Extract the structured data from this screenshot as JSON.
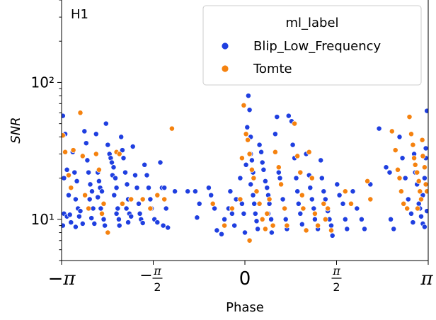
{
  "chart_data": {
    "type": "scatter",
    "panel_label": "H1",
    "xlabel": "Phase",
    "ylabel": "SNR",
    "xlim": [
      -3.14159,
      3.14159
    ],
    "ylim": [
      5,
      400
    ],
    "yscale": "log",
    "grid": false,
    "x_ticks": [
      {
        "value": -3.14159,
        "label": "−π"
      },
      {
        "value": -1.5708,
        "label": "−π/2"
      },
      {
        "value": 0,
        "label": "0"
      },
      {
        "value": 1.5708,
        "label": "π/2"
      },
      {
        "value": 3.14159,
        "label": "π"
      }
    ],
    "y_ticks": [
      {
        "value": 10,
        "label": "10¹"
      },
      {
        "value": 100,
        "label": "10²"
      }
    ],
    "legend": {
      "title": "ml_label",
      "placement": "top-right",
      "entries": [
        "Blip_Low_Frequency",
        "Tomte"
      ]
    },
    "colors": {
      "Blip_Low_Frequency": "#1f3fe0",
      "Tomte": "#f5820f"
    },
    "series": [
      {
        "name": "Blip_Low_Frequency",
        "points": [
          [
            -3.12,
            57
          ],
          [
            -3.08,
            42
          ],
          [
            -3.05,
            23
          ],
          [
            -3.1,
            20
          ],
          [
            -3.02,
            15
          ],
          [
            -3.1,
            11
          ],
          [
            -3.05,
            10.5
          ],
          [
            -2.98,
            9.5
          ],
          [
            -3.12,
            9
          ],
          [
            -3.0,
            10.8
          ],
          [
            -2.95,
            31
          ],
          [
            -2.92,
            22
          ],
          [
            -2.88,
            19
          ],
          [
            -2.9,
            14
          ],
          [
            -2.86,
            12
          ],
          [
            -2.82,
            11.5
          ],
          [
            -2.84,
            10.5
          ],
          [
            -2.78,
            9.3
          ],
          [
            -2.9,
            8.8
          ],
          [
            -2.75,
            44
          ],
          [
            -2.72,
            36
          ],
          [
            -2.7,
            27
          ],
          [
            -2.68,
            22
          ],
          [
            -2.65,
            18
          ],
          [
            -2.62,
            16
          ],
          [
            -2.66,
            14
          ],
          [
            -2.6,
            12
          ],
          [
            -2.63,
            10.2
          ],
          [
            -2.58,
            9.3
          ],
          [
            -2.55,
            42
          ],
          [
            -2.52,
            22
          ],
          [
            -2.5,
            19
          ],
          [
            -2.48,
            17
          ],
          [
            -2.45,
            16
          ],
          [
            -2.47,
            12
          ],
          [
            -2.42,
            10
          ],
          [
            -2.4,
            9
          ],
          [
            -2.52,
            14.5
          ],
          [
            -2.38,
            50
          ],
          [
            -2.35,
            35
          ],
          [
            -2.32,
            30
          ],
          [
            -2.3,
            28
          ],
          [
            -2.28,
            26
          ],
          [
            -2.25,
            24
          ],
          [
            -2.27,
            21
          ],
          [
            -2.22,
            20
          ],
          [
            -2.2,
            17
          ],
          [
            -2.24,
            15
          ],
          [
            -2.18,
            12
          ],
          [
            -2.2,
            11
          ],
          [
            -2.16,
            10
          ],
          [
            -2.15,
            9
          ],
          [
            -2.12,
            40
          ],
          [
            -2.1,
            32
          ],
          [
            -2.08,
            28
          ],
          [
            -2.05,
            22
          ],
          [
            -2.02,
            18
          ],
          [
            -2.0,
            14
          ],
          [
            -2.03,
            12
          ],
          [
            -1.98,
            11
          ],
          [
            -1.95,
            10.5
          ],
          [
            -2.0,
            9.5
          ],
          [
            -1.92,
            34
          ],
          [
            -1.88,
            21
          ],
          [
            -1.85,
            17
          ],
          [
            -1.82,
            13
          ],
          [
            -1.8,
            11
          ],
          [
            -1.78,
            10
          ],
          [
            -1.75,
            9.4
          ],
          [
            -1.72,
            25
          ],
          [
            -1.68,
            21
          ],
          [
            -1.65,
            17
          ],
          [
            -1.62,
            14
          ],
          [
            -1.6,
            12
          ],
          [
            -1.55,
            10
          ],
          [
            -1.5,
            9.5
          ],
          [
            -1.45,
            26
          ],
          [
            -1.42,
            17
          ],
          [
            -1.38,
            17
          ],
          [
            -1.4,
            9
          ],
          [
            -1.35,
            12
          ],
          [
            -1.32,
            8.7
          ],
          [
            -1.2,
            16
          ],
          [
            -0.98,
            16
          ],
          [
            -0.85,
            16
          ],
          [
            -0.82,
            10.3
          ],
          [
            -0.78,
            13
          ],
          [
            -0.62,
            17
          ],
          [
            -0.58,
            15
          ],
          [
            -0.52,
            12
          ],
          [
            -0.48,
            8.3
          ],
          [
            -0.4,
            7.8
          ],
          [
            -0.35,
            10
          ],
          [
            -0.28,
            12
          ],
          [
            -0.25,
            16
          ],
          [
            -0.22,
            11
          ],
          [
            -0.18,
            9
          ],
          [
            -0.15,
            14
          ],
          [
            -0.08,
            20
          ],
          [
            -0.05,
            13
          ],
          [
            -0.02,
            11
          ],
          [
            0.0,
            8
          ],
          [
            0.02,
            25
          ],
          [
            0.04,
            47
          ],
          [
            0.06,
            80
          ],
          [
            0.08,
            63
          ],
          [
            0.1,
            40
          ],
          [
            0.1,
            30
          ],
          [
            0.12,
            27
          ],
          [
            0.14,
            22
          ],
          [
            0.1,
            18
          ],
          [
            0.14,
            15
          ],
          [
            0.16,
            13
          ],
          [
            0.18,
            11
          ],
          [
            0.2,
            9.7
          ],
          [
            0.22,
            8.5
          ],
          [
            0.25,
            35
          ],
          [
            0.28,
            31
          ],
          [
            0.3,
            26
          ],
          [
            0.32,
            23
          ],
          [
            0.35,
            19
          ],
          [
            0.38,
            17
          ],
          [
            0.4,
            15
          ],
          [
            0.42,
            13
          ],
          [
            0.4,
            11
          ],
          [
            0.45,
            10
          ],
          [
            0.48,
            9
          ],
          [
            0.46,
            8
          ],
          [
            0.52,
            42
          ],
          [
            0.55,
            56
          ],
          [
            0.58,
            22
          ],
          [
            0.6,
            20
          ],
          [
            0.62,
            18
          ],
          [
            0.65,
            14
          ],
          [
            0.68,
            12
          ],
          [
            0.7,
            10
          ],
          [
            0.72,
            8.5
          ],
          [
            0.75,
            57
          ],
          [
            0.8,
            52
          ],
          [
            0.82,
            35
          ],
          [
            0.85,
            28
          ],
          [
            0.88,
            20
          ],
          [
            0.9,
            16
          ],
          [
            0.92,
            13
          ],
          [
            0.95,
            11
          ],
          [
            0.98,
            9.2
          ],
          [
            1.05,
            30
          ],
          [
            1.1,
            21
          ],
          [
            1.12,
            17
          ],
          [
            1.15,
            14
          ],
          [
            1.18,
            12
          ],
          [
            1.2,
            10
          ],
          [
            1.25,
            8.5
          ],
          [
            1.3,
            27
          ],
          [
            1.32,
            20
          ],
          [
            1.35,
            16
          ],
          [
            1.38,
            14
          ],
          [
            1.42,
            11.5
          ],
          [
            1.45,
            10
          ],
          [
            1.48,
            9
          ],
          [
            1.5,
            7.6
          ],
          [
            1.58,
            18
          ],
          [
            1.62,
            15
          ],
          [
            1.68,
            13
          ],
          [
            1.72,
            10
          ],
          [
            1.75,
            8.5
          ],
          [
            1.85,
            16
          ],
          [
            1.92,
            12
          ],
          [
            2.0,
            10
          ],
          [
            2.05,
            8.5
          ],
          [
            2.15,
            18
          ],
          [
            2.3,
            46
          ],
          [
            2.42,
            24
          ],
          [
            2.48,
            22
          ],
          [
            2.5,
            10
          ],
          [
            2.55,
            8.5
          ],
          [
            2.65,
            40
          ],
          [
            2.7,
            28
          ],
          [
            2.75,
            20
          ],
          [
            2.8,
            14
          ],
          [
            2.85,
            11
          ],
          [
            2.88,
            9.5
          ],
          [
            2.9,
            30
          ],
          [
            2.92,
            22
          ],
          [
            2.95,
            18
          ],
          [
            2.98,
            13
          ],
          [
            3.0,
            12
          ],
          [
            3.02,
            10.5
          ],
          [
            3.05,
            9.3
          ],
          [
            3.08,
            20
          ],
          [
            3.1,
            28
          ],
          [
            3.12,
            62
          ],
          [
            3.1,
            33
          ],
          [
            3.05,
            15
          ],
          [
            3.12,
            11.5
          ],
          [
            3.08,
            8.8
          ]
        ]
      },
      {
        "name": "Tomte",
        "points": [
          [
            -3.12,
            41
          ],
          [
            -3.08,
            31
          ],
          [
            -3.02,
            21
          ],
          [
            -2.98,
            17
          ],
          [
            -2.94,
            32
          ],
          [
            -2.82,
            60
          ],
          [
            -2.78,
            29
          ],
          [
            -2.74,
            15
          ],
          [
            -2.68,
            12
          ],
          [
            -2.55,
            30
          ],
          [
            -2.5,
            23
          ],
          [
            -2.45,
            11
          ],
          [
            -2.42,
            13
          ],
          [
            -2.35,
            8
          ],
          [
            -2.2,
            31
          ],
          [
            -2.15,
            30
          ],
          [
            -2.1,
            13
          ],
          [
            -1.95,
            14
          ],
          [
            -1.75,
            14
          ],
          [
            -1.62,
            12
          ],
          [
            -1.5,
            15
          ],
          [
            -1.38,
            14
          ],
          [
            -1.25,
            46
          ],
          [
            -0.55,
            13
          ],
          [
            -0.35,
            9
          ],
          [
            -0.22,
            12
          ],
          [
            -0.08,
            14
          ],
          [
            -0.05,
            28
          ],
          [
            -0.02,
            68
          ],
          [
            0.02,
            42
          ],
          [
            0.05,
            38
          ],
          [
            0.08,
            30
          ],
          [
            0.12,
            23
          ],
          [
            0.15,
            20
          ],
          [
            0.2,
            16
          ],
          [
            0.25,
            13
          ],
          [
            0.3,
            10
          ],
          [
            0.35,
            8.5
          ],
          [
            0.38,
            11
          ],
          [
            0.42,
            14
          ],
          [
            0.48,
            9
          ],
          [
            0.52,
            31
          ],
          [
            0.58,
            24
          ],
          [
            0.62,
            18
          ],
          [
            0.68,
            12
          ],
          [
            0.72,
            9
          ],
          [
            0.08,
            7
          ],
          [
            0.85,
            50
          ],
          [
            0.9,
            29
          ],
          [
            0.95,
            22
          ],
          [
            0.98,
            15
          ],
          [
            1.0,
            12
          ],
          [
            1.05,
            8.3
          ],
          [
            1.1,
            31
          ],
          [
            1.15,
            20
          ],
          [
            1.2,
            11
          ],
          [
            1.25,
            9
          ],
          [
            1.35,
            13
          ],
          [
            1.38,
            10
          ],
          [
            1.42,
            12
          ],
          [
            1.48,
            8.3
          ],
          [
            1.72,
            16
          ],
          [
            1.82,
            13
          ],
          [
            2.1,
            19
          ],
          [
            2.15,
            14
          ],
          [
            2.52,
            44
          ],
          [
            2.58,
            32
          ],
          [
            2.62,
            23
          ],
          [
            2.65,
            20
          ],
          [
            2.68,
            16
          ],
          [
            2.72,
            13
          ],
          [
            2.78,
            12
          ],
          [
            2.82,
            56
          ],
          [
            2.85,
            42
          ],
          [
            2.88,
            35
          ],
          [
            2.9,
            28
          ],
          [
            2.92,
            25
          ],
          [
            2.95,
            22
          ],
          [
            2.98,
            19
          ],
          [
            3.0,
            16
          ],
          [
            3.02,
            14
          ],
          [
            3.05,
            29
          ],
          [
            3.08,
            24
          ],
          [
            3.1,
            18
          ],
          [
            3.12,
            16
          ],
          [
            3.04,
            38
          ],
          [
            2.96,
            12
          ]
        ]
      }
    ]
  }
}
